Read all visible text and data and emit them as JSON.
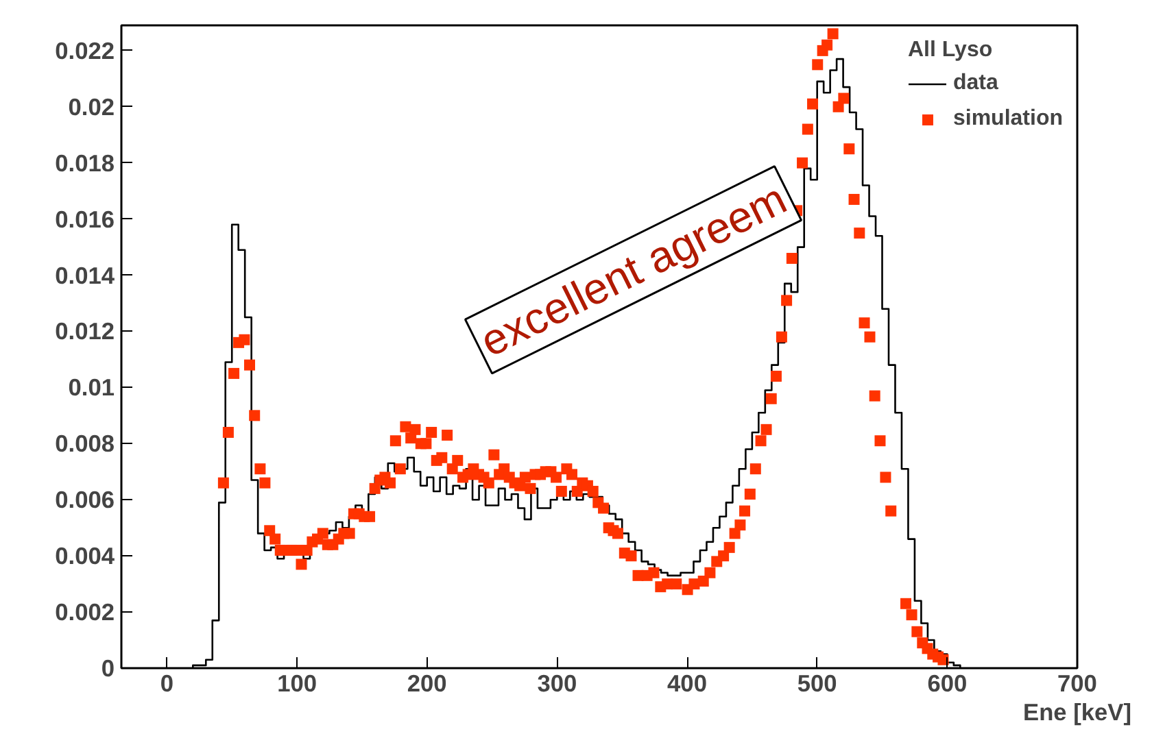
{
  "chart_data": {
    "type": "histogram",
    "xlabel": "Ene [keV]",
    "legend_title": "All Lyso",
    "legend": "top right",
    "grid": false,
    "xlim": [
      -35,
      700
    ],
    "ylim": [
      0,
      0.0229
    ],
    "xticks": [
      0,
      100,
      200,
      300,
      400,
      500,
      600,
      700
    ],
    "yticks": [
      0,
      0.002,
      0.004,
      0.006,
      0.008,
      0.01,
      0.012,
      0.014,
      0.016,
      0.018,
      0.02,
      0.022
    ],
    "annotations": [
      "excellent agreem"
    ],
    "series": [
      {
        "name": "data",
        "color": "#000000",
        "line_style": "solid",
        "bins": [
          20,
          25,
          30,
          35,
          40,
          45,
          50,
          55,
          60,
          65,
          70,
          75,
          80,
          85,
          90,
          95,
          100,
          105,
          110,
          115,
          120,
          125,
          130,
          135,
          140,
          145,
          150,
          155,
          160,
          165,
          170,
          175,
          180,
          185,
          190,
          195,
          200,
          205,
          210,
          215,
          220,
          225,
          230,
          235,
          240,
          245,
          250,
          255,
          260,
          265,
          270,
          275,
          280,
          285,
          290,
          295,
          300,
          305,
          310,
          315,
          320,
          325,
          330,
          335,
          340,
          345,
          350,
          355,
          360,
          365,
          370,
          375,
          380,
          385,
          390,
          395,
          400,
          405,
          410,
          415,
          420,
          425,
          430,
          435,
          440,
          445,
          450,
          455,
          460,
          465,
          470,
          475,
          480,
          485,
          490,
          495,
          500,
          505,
          510,
          515,
          520,
          525,
          530,
          535,
          540,
          545,
          550,
          555,
          560,
          565,
          570,
          575,
          580,
          585,
          590,
          595,
          600,
          605,
          610
        ],
        "values": [
          0.0001,
          0.0001,
          0.0003,
          0.0017,
          0.0059,
          0.0109,
          0.0158,
          0.0149,
          0.0125,
          0.0067,
          0.0048,
          0.0042,
          0.0043,
          0.0039,
          0.0041,
          0.0042,
          0.0041,
          0.0039,
          0.0044,
          0.0047,
          0.0048,
          0.0049,
          0.0052,
          0.005,
          0.0054,
          0.0058,
          0.0055,
          0.0062,
          0.0068,
          0.0064,
          0.0073,
          0.007,
          0.0071,
          0.0075,
          0.007,
          0.0065,
          0.0068,
          0.0063,
          0.0068,
          0.0062,
          0.0065,
          0.0064,
          0.0071,
          0.006,
          0.0065,
          0.0058,
          0.0058,
          0.0064,
          0.006,
          0.0062,
          0.0057,
          0.0053,
          0.0064,
          0.0057,
          0.0057,
          0.006,
          0.0062,
          0.006,
          0.0063,
          0.006,
          0.0062,
          0.0061,
          0.0061,
          0.0058,
          0.0055,
          0.0053,
          0.0048,
          0.0045,
          0.0042,
          0.0038,
          0.0037,
          0.0035,
          0.0034,
          0.0033,
          0.0033,
          0.0034,
          0.0034,
          0.0038,
          0.0042,
          0.0045,
          0.005,
          0.0054,
          0.0059,
          0.0065,
          0.0071,
          0.0078,
          0.0084,
          0.0091,
          0.0099,
          0.0108,
          0.0116,
          0.0137,
          0.0134,
          0.015,
          0.0178,
          0.0174,
          0.0209,
          0.0205,
          0.0213,
          0.0217,
          0.0207,
          0.0198,
          0.0192,
          0.0172,
          0.0161,
          0.0154,
          0.0128,
          0.0108,
          0.0091,
          0.0071,
          0.0046,
          0.0024,
          0.0016,
          0.001,
          0.0006,
          0.0005,
          0.0002,
          0.0001
        ]
      },
      {
        "name": "simulation",
        "type": "scatter",
        "marker": "square",
        "color": "#ff3300",
        "x": [
          43.5,
          47.2,
          51.5,
          55.2,
          59.6,
          63.6,
          67.4,
          71.7,
          75.4,
          79,
          83.2,
          87.2,
          91.6,
          96,
          100,
          103.4,
          107.7,
          111.8,
          115.8,
          119.9,
          123.6,
          127.6,
          132,
          136,
          140.4,
          143.7,
          147.8,
          151.8,
          155.9,
          159.9,
          163.9,
          167.7,
          171.7,
          175.8,
          179.5,
          183.5,
          187.6,
          190.9,
          195.3,
          199.3,
          203.4,
          207.4,
          211.4,
          215.5,
          219.5,
          223.5,
          227.6,
          231.6,
          235.7,
          239.7,
          243.7,
          247.5,
          251.5,
          255.6,
          259.3,
          263.3,
          267.4,
          271.4,
          275.5,
          279.5,
          283.2,
          287.2,
          291.2,
          295.3,
          299.3,
          303.4,
          307.4,
          311.4,
          315.5,
          319.5,
          323.5,
          327.6,
          331.6,
          335.7,
          339.7,
          343.3,
          346.7,
          351.9,
          357,
          362.3,
          369.2,
          374.4,
          379.6,
          384.8,
          391.7,
          400.3,
          405.5,
          412.5,
          417.6,
          422.8,
          428,
          432.5,
          436.7,
          440.8,
          444.3,
          448.4,
          452.6,
          456.7,
          460.9,
          464.7,
          468.5,
          472.7,
          476.5,
          480.6,
          484.4,
          488.6,
          492.7,
          496.5,
          500.3,
          504.2,
          507.6,
          512.1,
          516.3,
          520.4,
          524.6,
          528.4,
          532.5,
          536.3,
          540.5,
          544.3,
          548.4,
          552.6,
          556.7,
          568.2,
          572.7,
          576.8,
          581,
          584.8,
          588.9,
          593,
          596.9
        ],
        "values": [
          0.0066,
          0.0084,
          0.0105,
          0.0116,
          0.0117,
          0.0108,
          0.009,
          0.0071,
          0.0066,
          0.0049,
          0.0046,
          0.0042,
          0.0042,
          0.0042,
          0.0042,
          0.0037,
          0.0042,
          0.0045,
          0.0046,
          0.0048,
          0.0044,
          0.0044,
          0.0046,
          0.0048,
          0.0048,
          0.0055,
          0.0055,
          0.0054,
          0.0054,
          0.0064,
          0.0067,
          0.0068,
          0.0066,
          0.0081,
          0.0071,
          0.0086,
          0.0082,
          0.0085,
          0.008,
          0.008,
          0.0084,
          0.0074,
          0.0075,
          0.0083,
          0.0071,
          0.0074,
          0.0068,
          0.0069,
          0.0071,
          0.0069,
          0.0068,
          0.0066,
          0.0076,
          0.0069,
          0.0071,
          0.0068,
          0.0066,
          0.0065,
          0.0068,
          0.0064,
          0.0069,
          0.0069,
          0.007,
          0.007,
          0.0068,
          0.0063,
          0.0071,
          0.0069,
          0.0063,
          0.0066,
          0.0065,
          0.0063,
          0.0059,
          0.0057,
          0.005,
          0.0049,
          0.0048,
          0.0041,
          0.004,
          0.0033,
          0.0033,
          0.0034,
          0.0029,
          0.003,
          0.003,
          0.0028,
          0.003,
          0.0031,
          0.0034,
          0.0038,
          0.004,
          0.0043,
          0.0048,
          0.0051,
          0.0056,
          0.0062,
          0.0071,
          0.0081,
          0.0085,
          0.0096,
          0.0104,
          0.0118,
          0.0131,
          0.0146,
          0.0163,
          0.018,
          0.0192,
          0.0201,
          0.0215,
          0.022,
          0.0222,
          0.0226,
          0.02,
          0.0203,
          0.0185,
          0.0167,
          0.0155,
          0.0123,
          0.0118,
          0.0097,
          0.0081,
          0.0068,
          0.0056,
          0.0023,
          0.0019,
          0.0013,
          0.0009,
          0.0007,
          0.0005,
          0.0004,
          0.0003
        ]
      }
    ]
  }
}
